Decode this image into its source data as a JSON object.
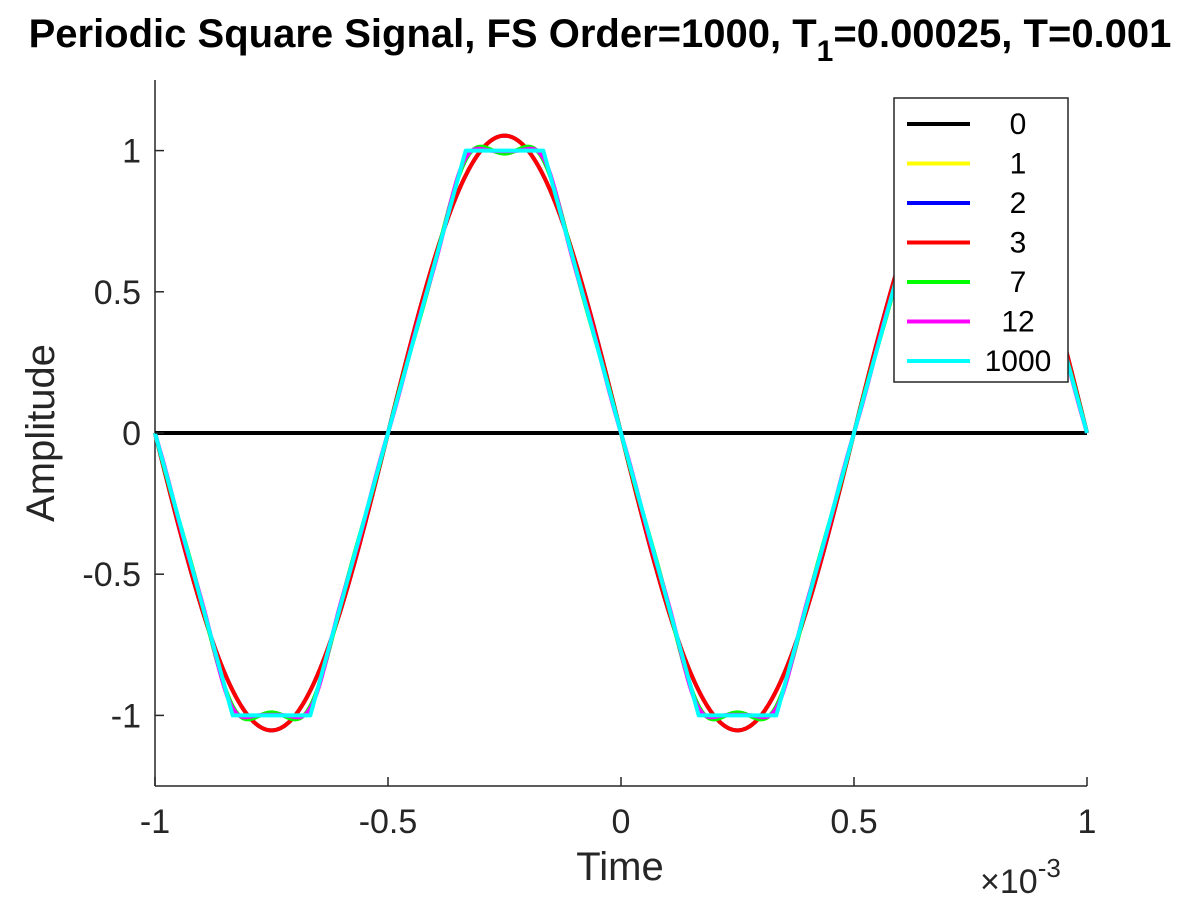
{
  "chart_data": {
    "type": "line",
    "title_main": "Periodic Square Signal, FS Order=1000, T",
    "title_sub": "1",
    "title_tail": "=0.00025, T=0.001",
    "xlabel": "Time",
    "ylabel": "Amplitude",
    "x_exponent_base": "×10",
    "x_exponent_power": "-3",
    "xlim": [
      -0.001,
      0.001
    ],
    "ylim": [
      -1.25,
      1.25
    ],
    "xticks": [
      -0.001,
      -0.0005,
      0,
      0.0005,
      0.001
    ],
    "xtick_labels": [
      "-1",
      "-0.5",
      "0",
      "0.5",
      "1"
    ],
    "yticks": [
      -1,
      -0.5,
      0,
      0.5,
      1
    ],
    "ytick_labels": [
      "-1",
      "-0.5",
      "0",
      "0.5",
      "1"
    ],
    "period": 0.001,
    "T1": 0.00025,
    "grid": false,
    "legend_position": "top-right",
    "series": [
      {
        "name": "0",
        "order": 0,
        "color": "#000000"
      },
      {
        "name": "1",
        "order": 1,
        "color": "#ffff00"
      },
      {
        "name": "2",
        "order": 2,
        "color": "#0000ff"
      },
      {
        "name": "3",
        "order": 3,
        "color": "#ff0000"
      },
      {
        "name": "7",
        "order": 7,
        "color": "#00ff00"
      },
      {
        "name": "12",
        "order": 12,
        "color": "#ff00ff"
      },
      {
        "name": "1000",
        "order": 1000,
        "color": "#00ffff"
      }
    ]
  }
}
